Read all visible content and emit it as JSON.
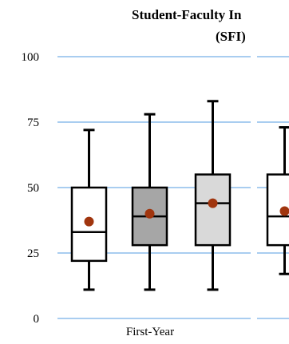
{
  "chart_data": {
    "type": "box",
    "title": "Student-Faculty In",
    "subtitle": "(SFI)",
    "ylim": [
      0,
      100
    ],
    "yticks": [
      "0",
      "25",
      "50",
      "75",
      "100"
    ],
    "grid": true,
    "colors": {
      "grid": "#a9cdf0",
      "mean_marker": "#a0350e",
      "box_stroke": "#000000"
    },
    "groups": [
      {
        "label": "First-Year",
        "boxes": [
          {
            "fill": "#ffffff",
            "min": 11,
            "q1": 22,
            "median": 33,
            "q3": 50,
            "max": 72,
            "mean": 37
          },
          {
            "fill": "#a6a6a6",
            "min": 11,
            "q1": 28,
            "median": 39,
            "q3": 50,
            "max": 78,
            "mean": 40
          },
          {
            "fill": "#d9d9d9",
            "min": 11,
            "q1": 28,
            "median": 44,
            "q3": 55,
            "max": 83,
            "mean": 44
          }
        ]
      },
      {
        "label": "",
        "boxes": [
          {
            "fill": "#ffffff",
            "min": 17,
            "q1": 28,
            "median": 39,
            "q3": 55,
            "max": 73,
            "mean": 41
          }
        ]
      }
    ]
  }
}
